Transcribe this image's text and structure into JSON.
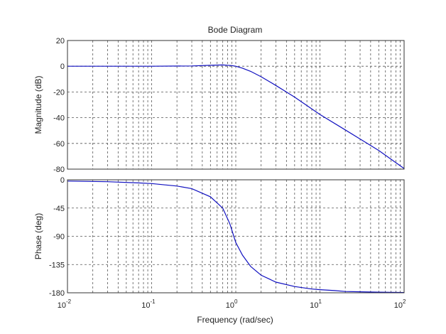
{
  "chart_data": {
    "type": "line",
    "title": "Bode Diagram",
    "xlabel": "Frequency  (rad/sec)",
    "x_scale": "log",
    "xlim": [
      0.01,
      100
    ],
    "grid": true,
    "x_ticks": [
      {
        "base": "10",
        "exp": "-2"
      },
      {
        "base": "10",
        "exp": "-1"
      },
      {
        "base": "10",
        "exp": "0"
      },
      {
        "base": "10",
        "exp": "1"
      },
      {
        "base": "10",
        "exp": "2"
      }
    ],
    "panels": [
      {
        "id": "magnitude",
        "ylabel": "Magnitude (dB)",
        "ylim": [
          -80,
          20
        ],
        "yticks": [
          20,
          0,
          -20,
          -40,
          -60,
          -80
        ],
        "series": [
          {
            "color": "#1010c0",
            "x": [
              0.01,
              0.03,
              0.1,
              0.3,
              0.5,
              0.7,
              0.9,
              1.0,
              1.2,
              1.5,
              2,
              3,
              5,
              10,
              20,
              50,
              100
            ],
            "y": [
              0,
              0,
              0,
              0.2,
              0.7,
              1.0,
              0.5,
              0,
              -1.5,
              -4,
              -8.2,
              -15,
              -24,
              -37.5,
              -49.5,
              -65.5,
              -79.5
            ]
          }
        ]
      },
      {
        "id": "phase",
        "ylabel": "Phase (deg)",
        "ylim": [
          -180,
          0
        ],
        "yticks": [
          0,
          -45,
          -90,
          -135,
          -180
        ],
        "series": [
          {
            "color": "#1010c0",
            "x": [
              0.01,
              0.03,
              0.07,
              0.1,
              0.2,
              0.3,
              0.5,
              0.7,
              0.85,
              1.0,
              1.2,
              1.5,
              2,
              3,
              5,
              8,
              10,
              15,
              20,
              50,
              100
            ],
            "y": [
              -2,
              -3,
              -5,
              -6,
              -10,
              -14,
              -27,
              -45,
              -70,
              -100,
              -120,
              -138,
              -152,
              -163,
              -170,
              -174,
              -175,
              -176.5,
              -178,
              -179,
              -179.5
            ]
          }
        ]
      }
    ]
  }
}
